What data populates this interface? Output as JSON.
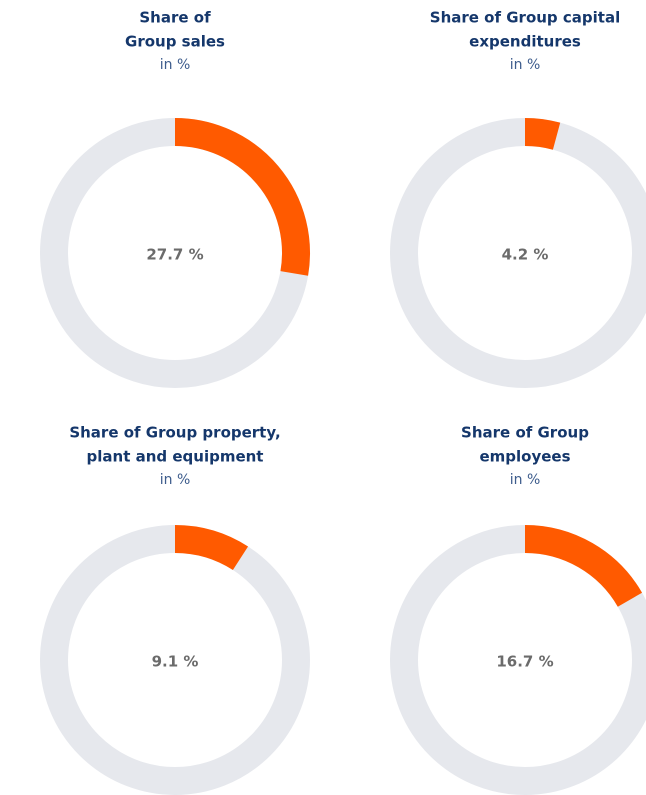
{
  "chart_data": [
    {
      "type": "donut",
      "title": [
        "Share of",
        "Group sales"
      ],
      "subtitle": "in %",
      "values": [
        27.7
      ],
      "value_labels": [
        "27.7 %"
      ],
      "colors": [
        "#ff5a00"
      ],
      "track_color": "#e6e8ed"
    },
    {
      "type": "donut",
      "title": [
        "Share of Group capital",
        "expenditures"
      ],
      "subtitle": "in %",
      "values": [
        4.2
      ],
      "value_labels": [
        "4.2 %"
      ],
      "colors": [
        "#ff5a00"
      ],
      "track_color": "#e6e8ed"
    },
    {
      "type": "donut",
      "title": [
        "Share of Group property,",
        "plant and equipment"
      ],
      "subtitle": "in %",
      "values": [
        9.1
      ],
      "value_labels": [
        "9.1 %"
      ],
      "colors": [
        "#ff5a00"
      ],
      "track_color": "#e6e8ed"
    },
    {
      "type": "donut",
      "title": [
        "Share of Group",
        "employees"
      ],
      "subtitle": "in %",
      "values": [
        16.7
      ],
      "value_labels": [
        "16.7 %"
      ],
      "colors": [
        "#ff5a00"
      ],
      "track_color": "#e6e8ed"
    }
  ]
}
